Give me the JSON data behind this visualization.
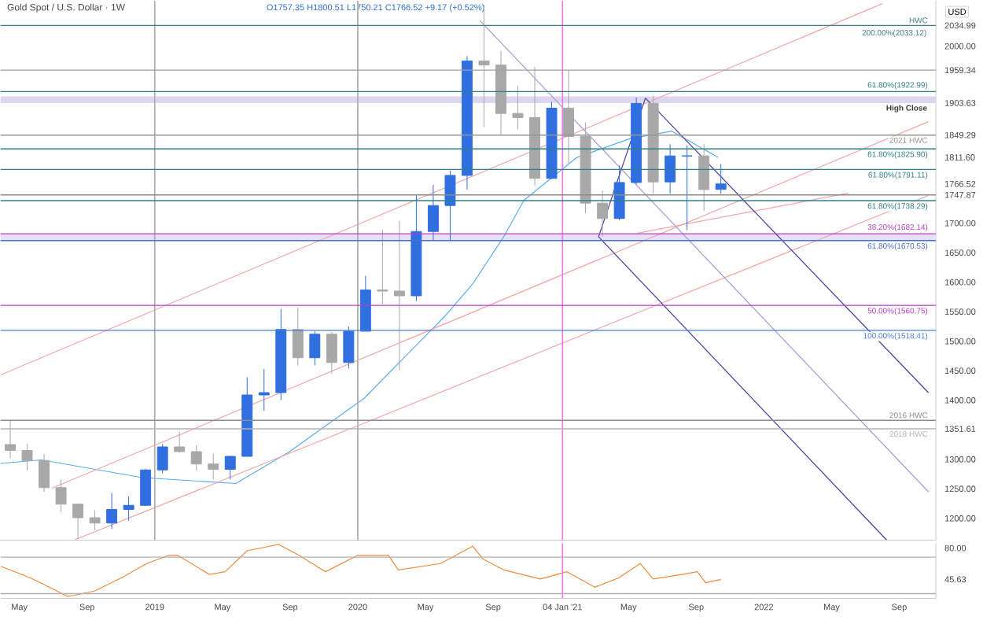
{
  "chart_data": [
    {
      "type": "candlestick",
      "title": "Gold Spot / U.S. Dollar · 1W",
      "subtitle": "O1757.35 H1800.51 L1750.21 C1766.52 +9.17 (+0.52%)",
      "ylabel": "USD",
      "x": [
        "2018-04-15",
        "2018-05-15",
        "2018-06-15",
        "2018-07-15",
        "2018-08-15",
        "2018-09-15",
        "2018-10-15",
        "2018-11-15",
        "2018-12-15",
        "2019-01-15",
        "2019-02-15",
        "2019-03-15",
        "2019-04-15",
        "2019-05-15",
        "2019-06-15",
        "2019-07-15",
        "2019-08-15",
        "2019-09-15",
        "2019-10-15",
        "2019-11-15",
        "2019-12-15",
        "2020-01-15",
        "2020-02-15",
        "2020-03-15",
        "2020-04-15",
        "2020-05-15",
        "2020-06-15",
        "2020-07-15",
        "2020-08-15",
        "2020-09-15",
        "2020-10-15",
        "2020-11-15",
        "2020-12-15",
        "2021-01-15",
        "2021-02-15",
        "2021-03-15",
        "2021-04-15",
        "2021-05-15",
        "2021-06-15",
        "2021-07-15",
        "2021-08-15",
        "2021-09-15",
        "2021-10-15"
      ],
      "ohlc": [
        [
          1325,
          1365,
          1302,
          1315
        ],
        [
          1315,
          1326,
          1281,
          1298
        ],
        [
          1298,
          1309,
          1245,
          1252
        ],
        [
          1252,
          1266,
          1211,
          1224
        ],
        [
          1224,
          1225,
          1165,
          1201
        ],
        [
          1201,
          1214,
          1180,
          1192
        ],
        [
          1192,
          1243,
          1182,
          1215
        ],
        [
          1215,
          1237,
          1196,
          1222
        ],
        [
          1222,
          1284,
          1221,
          1282
        ],
        [
          1282,
          1326,
          1276,
          1321
        ],
        [
          1321,
          1347,
          1311,
          1313
        ],
        [
          1313,
          1324,
          1281,
          1292
        ],
        [
          1292,
          1310,
          1266,
          1283
        ],
        [
          1283,
          1306,
          1266,
          1305
        ],
        [
          1305,
          1439,
          1305,
          1409
        ],
        [
          1409,
          1453,
          1382,
          1413
        ],
        [
          1413,
          1555,
          1400,
          1520
        ],
        [
          1520,
          1557,
          1459,
          1472
        ],
        [
          1472,
          1517,
          1459,
          1512
        ],
        [
          1512,
          1516,
          1445,
          1464
        ],
        [
          1464,
          1525,
          1454,
          1517
        ],
        [
          1517,
          1611,
          1517,
          1587
        ],
        [
          1587,
          1689,
          1563,
          1585
        ],
        [
          1585,
          1704,
          1451,
          1577
        ],
        [
          1577,
          1747,
          1568,
          1686
        ],
        [
          1686,
          1765,
          1670,
          1730
        ],
        [
          1730,
          1789,
          1671,
          1781
        ],
        [
          1781,
          1983,
          1757,
          1975
        ],
        [
          1975,
          2070,
          1863,
          1968
        ],
        [
          1968,
          1992,
          1849,
          1886
        ],
        [
          1886,
          1933,
          1859,
          1879
        ],
        [
          1879,
          1965,
          1764,
          1776
        ],
        [
          1776,
          1906,
          1775,
          1895
        ],
        [
          1895,
          1959,
          1802,
          1847
        ],
        [
          1847,
          1871,
          1717,
          1734
        ],
        [
          1734,
          1755,
          1677,
          1708
        ],
        [
          1708,
          1798,
          1705,
          1769
        ],
        [
          1769,
          1913,
          1766,
          1903
        ],
        [
          1903,
          1916,
          1750,
          1770
        ],
        [
          1770,
          1834,
          1750,
          1814
        ],
        [
          1814,
          1832,
          1688,
          1814
        ],
        [
          1814,
          1834,
          1721,
          1757
        ],
        [
          1757.35,
          1800.51,
          1750.21,
          1766.52
        ]
      ],
      "colors": [
        "#a8a8a8",
        "#a8a8a8",
        "#a8a8a8",
        "#a8a8a8",
        "#a8a8a8",
        "#a8a8a8",
        "#2f6fe0",
        "#2f6fe0",
        "#2f6fe0",
        "#2f6fe0",
        "#a8a8a8",
        "#a8a8a8",
        "#a8a8a8",
        "#2f6fe0",
        "#2f6fe0",
        "#2f6fe0",
        "#2f6fe0",
        "#a8a8a8",
        "#2f6fe0",
        "#a8a8a8",
        "#2f6fe0",
        "#2f6fe0",
        "#a8a8a8",
        "#a8a8a8",
        "#2f6fe0",
        "#2f6fe0",
        "#2f6fe0",
        "#2f6fe0",
        "#a8a8a8",
        "#a8a8a8",
        "#a8a8a8",
        "#a8a8a8",
        "#2f6fe0",
        "#a8a8a8",
        "#a8a8a8",
        "#a8a8a8",
        "#2f6fe0",
        "#2f6fe0",
        "#a8a8a8",
        "#2f6fe0",
        "#2f6fe0",
        "#a8a8a8",
        "#2f6fe0"
      ],
      "series": [
        {
          "type": "line",
          "color": "#5aaef0",
          "x": [
            "2018-03-28",
            "2018-06-10",
            "2018-12-09",
            "2019-05-25",
            "2019-08-29",
            "2020-01-12",
            "2020-06-07",
            "2020-07-25",
            "2020-09-20",
            "2020-10-26",
            "2021-01-29",
            "2021-05-03",
            "2021-07-18",
            "2021-10-10"
          ],
          "values": [
            1293,
            1299,
            1269,
            1259,
            1312,
            1403,
            1544,
            1597,
            1677,
            1739,
            1811,
            1843,
            1856,
            1811.6
          ]
        },
        {
          "type": "line",
          "color": "#f4a6a6",
          "x": [
            "2018-03-28",
            "2022-08-01"
          ],
          "values": [
            1443,
            2072
          ]
        },
        {
          "type": "line",
          "color": "#f4a6a6",
          "x": [
            "2018-06-29",
            "2022-10-23"
          ],
          "values": [
            1251,
            1872
          ]
        },
        {
          "type": "line",
          "color": "#f4a6a6",
          "x": [
            "2018-08-08",
            "2022-10-23"
          ],
          "values": [
            1163,
            1747
          ]
        },
        {
          "type": "line",
          "color": "#f4a6a6",
          "x": [
            "2021-05-17",
            "2022-06-01"
          ],
          "values": [
            1683,
            1751
          ]
        },
        {
          "type": "line",
          "color": "#a59ad6",
          "x": [
            "2020-08-08",
            "2022-10-23"
          ],
          "values": [
            2043,
            1245
          ]
        },
        {
          "type": "line",
          "color": "#4b3aa0",
          "x": [
            "2021-06-01",
            "2022-10-23"
          ],
          "values": [
            1912,
            1413
          ]
        },
        {
          "type": "line",
          "color": "#4b3aa0",
          "x": [
            "2021-03-08",
            "2022-08-09"
          ],
          "values": [
            1677,
            1163
          ]
        },
        {
          "type": "line",
          "color": "#4b3aa0",
          "x": [
            "2021-03-08",
            "2021-06-01"
          ],
          "values": [
            1677,
            1912
          ]
        }
      ],
      "xlim": [
        "2018-03-28",
        "2022-11-06"
      ],
      "ylim": [
        1163,
        2077
      ],
      "yticks": [
        {
          "value": 2034.99,
          "label": "2034.99"
        },
        {
          "value": 2000,
          "label": "2000.00"
        },
        {
          "value": 1959.34,
          "label": "1959.34"
        },
        {
          "value": 1903.63,
          "label": "1903.63"
        },
        {
          "value": 1849.29,
          "label": "1849.29"
        },
        {
          "value": 1811.6,
          "label": "1811.60"
        },
        {
          "value": 1766.52,
          "label": "1766.52"
        },
        {
          "value": 1747.87,
          "label": "1747.87"
        },
        {
          "value": 1700,
          "label": "1700.00"
        },
        {
          "value": 1650,
          "label": "1650.00"
        },
        {
          "value": 1600,
          "label": "1600.00"
        },
        {
          "value": 1550,
          "label": "1550.00"
        },
        {
          "value": 1500,
          "label": "1500.00"
        },
        {
          "value": 1450,
          "label": "1450.00"
        },
        {
          "value": 1400,
          "label": "1400.00"
        },
        {
          "value": 1351.61,
          "label": "1351.61"
        },
        {
          "value": 1300,
          "label": "1300.00"
        },
        {
          "value": 1250,
          "label": "1250.00"
        },
        {
          "value": 1200,
          "label": "1200.00"
        }
      ],
      "tick_labels": "y",
      "annotations": [
        {
          "text": "200.00%(2033.12)",
          "x": "2022-10-22",
          "y": 2033.12
        }
      ],
      "bands": [
        {
          "axis": "y",
          "from": 1903.63,
          "to": 1915,
          "label": "High Close",
          "color": "#ddd6f0"
        },
        {
          "axis": "y",
          "from": 1670.53,
          "to": 1682.14,
          "color": "#e6e1f4"
        }
      ],
      "ref_lines": [
        {
          "axis": "x",
          "value": "2019-01-01",
          "color": "#b0b0b0"
        },
        {
          "axis": "x",
          "value": "2020-01-01",
          "color": "#b0b0b0"
        },
        {
          "axis": "x",
          "value": "2021-01-04",
          "color": "#f07ee8"
        },
        {
          "axis": "y",
          "value": 2034.99,
          "label": "HWC",
          "color": "#3f7f8a"
        },
        {
          "axis": "y",
          "value": 1959.34,
          "color": "#a0a0a0"
        },
        {
          "axis": "y",
          "value": 1922.99,
          "label": "61.80%(1922.99)",
          "color": "#2f7f86"
        },
        {
          "axis": "y",
          "value": 1849.29,
          "label": "2021 HWC",
          "color": "#969696"
        },
        {
          "axis": "y",
          "value": 1825.9,
          "label": "61.80%(1825.90)",
          "color": "#2f7f86"
        },
        {
          "axis": "y",
          "value": 1791.11,
          "label": "61.80%(1791.11)",
          "color": "#2f7f86"
        },
        {
          "axis": "y",
          "value": 1747.87,
          "color": "#8a8a8a"
        },
        {
          "axis": "y",
          "value": 1738.29,
          "label": "61.80%(1738.29)",
          "color": "#2f7f86"
        },
        {
          "axis": "y",
          "value": 1682.14,
          "label": "38.20%(1682.14)",
          "color": "#b440c4"
        },
        {
          "axis": "y",
          "value": 1670.53,
          "label": "61.80%(1670.53)",
          "color": "#4a6fd0"
        },
        {
          "axis": "y",
          "value": 1560.75,
          "label": "50.00%(1560.75)",
          "color": "#b440c4"
        },
        {
          "axis": "y",
          "value": 1518.41,
          "label": "100.00%(1518.41)",
          "color": "#4a7fd0"
        },
        {
          "axis": "y",
          "value": 1366,
          "label": "2016 HWC",
          "color": "#8c8c8c"
        },
        {
          "axis": "y",
          "value": 1351.61,
          "label": "2018 HWC",
          "color": "#b4b4b4"
        }
      ]
    },
    {
      "type": "line",
      "series": [
        {
          "color": "#f08a3c",
          "x": [
            "2018-03-28",
            "2018-05-22",
            "2018-07-27",
            "2018-08-08",
            "2018-09-15",
            "2018-11-01",
            "2018-12-17",
            "2019-01-26",
            "2019-02-12",
            "2019-04-08",
            "2019-05-06",
            "2019-06-15",
            "2019-08-11",
            "2019-09-17",
            "2019-11-04",
            "2020-01-01",
            "2020-02-26",
            "2020-03-13",
            "2020-05-28",
            "2020-07-25",
            "2020-08-13",
            "2020-09-20",
            "2020-11-25",
            "2021-01-12",
            "2021-03-01",
            "2021-04-13",
            "2021-05-22",
            "2021-06-15",
            "2021-08-06",
            "2021-09-03",
            "2021-09-18",
            "2021-10-15"
          ],
          "values": [
            60,
            47,
            27,
            28,
            33,
            47,
            63,
            72,
            72,
            51,
            54,
            77,
            84,
            72,
            54,
            72,
            72,
            56,
            63,
            82,
            68,
            56,
            46,
            54,
            37,
            47,
            63,
            46,
            51,
            54,
            42,
            45.63
          ]
        }
      ],
      "xlim": [
        "2018-03-28",
        "2022-11-06"
      ],
      "ylim": [
        24.8,
        85.2
      ],
      "yticks": [
        {
          "value": 80,
          "label": "80.00"
        },
        {
          "value": 45.63,
          "label": "45.63"
        }
      ],
      "xticks": [
        {
          "value": "2018-05-01",
          "label": "May"
        },
        {
          "value": "2018-09-01",
          "label": "Sep"
        },
        {
          "value": "2019-01-01",
          "label": "2019"
        },
        {
          "value": "2019-05-01",
          "label": "May"
        },
        {
          "value": "2019-09-01",
          "label": "Sep"
        },
        {
          "value": "2020-01-01",
          "label": "2020"
        },
        {
          "value": "2020-05-01",
          "label": "May"
        },
        {
          "value": "2020-09-01",
          "label": "Sep"
        },
        {
          "value": "2021-01-04",
          "label": "04 Jan '21"
        },
        {
          "value": "2021-05-01",
          "label": "May"
        },
        {
          "value": "2021-09-01",
          "label": "Sep"
        },
        {
          "value": "2022-01-01",
          "label": "2022"
        },
        {
          "value": "2022-05-01",
          "label": "May"
        },
        {
          "value": "2022-09-01",
          "label": "Sep"
        }
      ],
      "ref_lines": [
        {
          "axis": "y",
          "value": 70,
          "color": "#b0b0b0"
        },
        {
          "axis": "y",
          "value": 30,
          "color": "#b0b0b0"
        },
        {
          "axis": "x",
          "value": "2021-01-04",
          "color": "#f07ee8"
        }
      ]
    }
  ]
}
